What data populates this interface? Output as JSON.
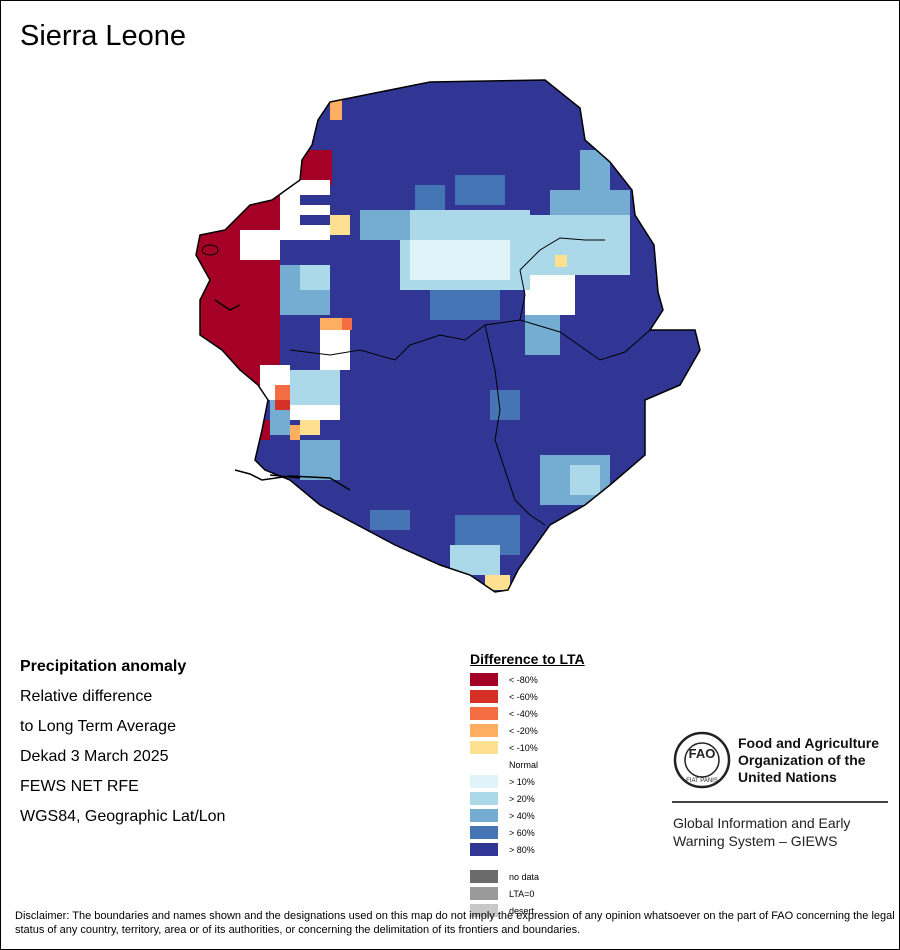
{
  "title": "Sierra Leone",
  "info": {
    "heading": "Precipitation anomaly",
    "line1": "Relative difference",
    "line2": "to Long Term Average",
    "period": "Dekad 3 March 2025",
    "source": "FEWS NET RFE",
    "projection": "WGS84, Geographic Lat/Lon"
  },
  "legend": {
    "title": "Difference to LTA",
    "items": [
      {
        "label": "< -80%",
        "color": "#a50026"
      },
      {
        "label": "< -60%",
        "color": "#d73027"
      },
      {
        "label": "< -40%",
        "color": "#f46d43"
      },
      {
        "label": "< -20%",
        "color": "#fdae61"
      },
      {
        "label": "< -10%",
        "color": "#fee090"
      },
      {
        "label": "Normal",
        "color": "#ffffff"
      },
      {
        "label": "> 10%",
        "color": "#e0f3f8"
      },
      {
        "label": "> 20%",
        "color": "#abd9e9"
      },
      {
        "label": "> 40%",
        "color": "#74add1"
      },
      {
        "label": "> 60%",
        "color": "#4575b4"
      },
      {
        "label": "> 80%",
        "color": "#313695"
      }
    ],
    "extra": [
      {
        "label": "no data",
        "color": "#6b6b6b"
      },
      {
        "label": "LTA=0",
        "color": "#9a9a9a"
      },
      {
        "label": "desert",
        "color": "#c8c8c8"
      }
    ]
  },
  "logo": {
    "org_name": "Food and Agriculture Organization of the United Nations",
    "emblem_text": "FAO",
    "motto": "FIAT PANIS",
    "system": "Global Information and Early Warning System – GIEWS"
  },
  "disclaimer": "Disclaimer: The boundaries and names shown and the designations used on this map do not imply the expression of any opinion whatsoever on the part of FAO concerning the legal status of any country, territory, area or of its authorities, or concerning the delimitation of its frontiers and boundaries."
}
